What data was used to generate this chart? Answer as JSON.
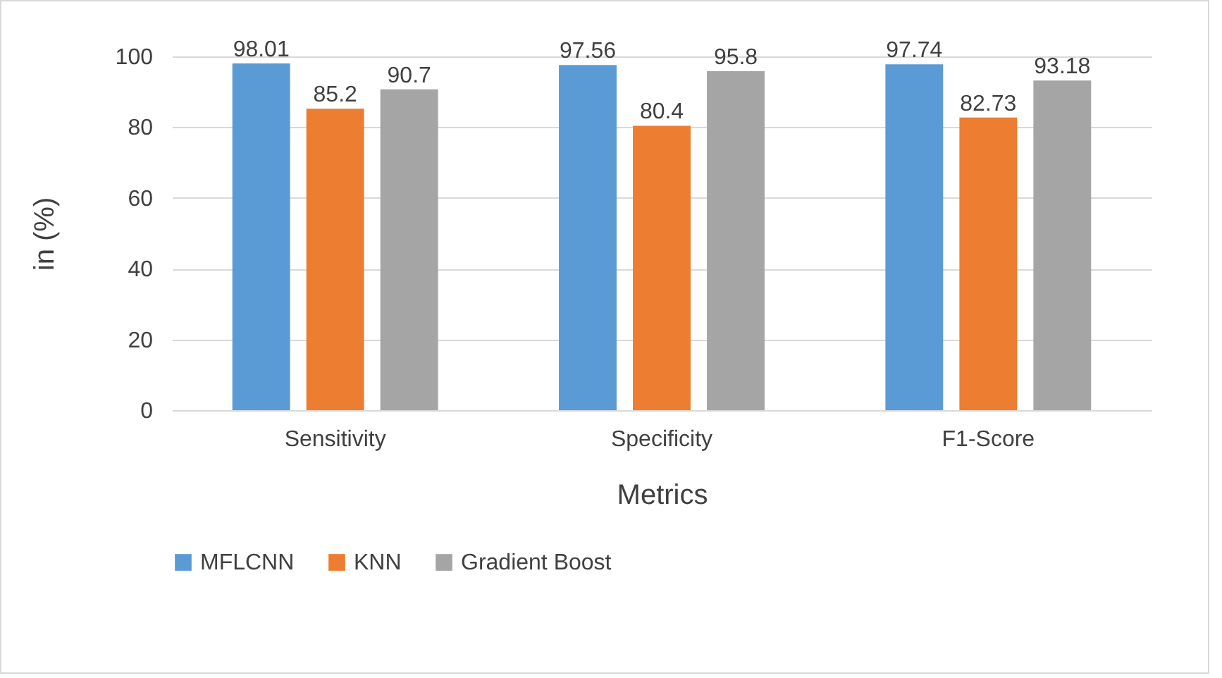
{
  "chart_data": {
    "type": "bar",
    "xlabel": "Metrics",
    "ylabel": "in (%)",
    "categories": [
      "Sensitivity",
      "Specificity",
      "F1-Score"
    ],
    "series": [
      {
        "name": "MFLCNN",
        "color": "#5b9bd5",
        "values": [
          98.01,
          97.56,
          97.74
        ]
      },
      {
        "name": "KNN",
        "color": "#ed7d31",
        "values": [
          85.2,
          80.4,
          82.73
        ]
      },
      {
        "name": "Gradient Boost",
        "color": "#a5a5a5",
        "values": [
          90.7,
          95.8,
          93.18
        ]
      }
    ],
    "ylim": [
      0,
      100
    ],
    "yticks": [
      0,
      20,
      40,
      60,
      80,
      100
    ],
    "grid": "y",
    "legend": "bottom",
    "data_labels": true
  }
}
